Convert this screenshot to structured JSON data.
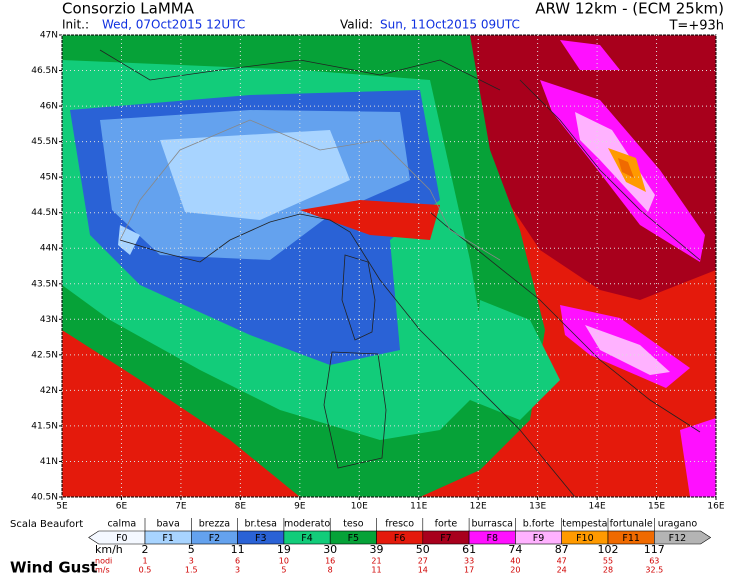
{
  "header": {
    "title": "Consorzio LaMMA",
    "init_label": "Init.:",
    "init": "Wed, 07Oct2015 12UTC",
    "valid_label": "Valid:",
    "valid": "Sun, 11Oct2015 09UTC",
    "model": "ARW 12km - (ECM 25km)",
    "lead": "T=+93h"
  },
  "map": {
    "lat_labels": [
      "47N",
      "46.5N",
      "46N",
      "45.5N",
      "45N",
      "44.5N",
      "44N",
      "43.5N",
      "43N",
      "42.5N",
      "42N",
      "41.5N",
      "41N",
      "40.5N"
    ],
    "lon_labels": [
      "5E",
      "6E",
      "7E",
      "8E",
      "9E",
      "10E",
      "11E",
      "12E",
      "13E",
      "14E",
      "15E",
      "16E"
    ]
  },
  "legend": {
    "scale_label": "Scala Beaufort",
    "classes": [
      {
        "name": "calma",
        "force": "F0",
        "color": "#f4f8ff"
      },
      {
        "name": "bava",
        "force": "F1",
        "color": "#a8d4ff"
      },
      {
        "name": "brezza",
        "force": "F2",
        "color": "#64a2ee"
      },
      {
        "name": "br.tesa",
        "force": "F3",
        "color": "#2a62d6"
      },
      {
        "name": "moderato",
        "force": "F4",
        "color": "#12cc7a"
      },
      {
        "name": "teso",
        "force": "F5",
        "color": "#06a238"
      },
      {
        "name": "fresco",
        "force": "F6",
        "color": "#e41a0c"
      },
      {
        "name": "forte",
        "force": "F7",
        "color": "#a8001c"
      },
      {
        "name": "burrasca",
        "force": "F8",
        "color": "#ff10ff"
      },
      {
        "name": "b.forte",
        "force": "F9",
        "color": "#ffb2ff"
      },
      {
        "name": "tempesta",
        "force": "F10",
        "color": "#ff9a00"
      },
      {
        "name": "fortunale",
        "force": "F11",
        "color": "#f06a00"
      },
      {
        "name": "uragano",
        "force": "F12",
        "color": "#b4b4b4"
      }
    ],
    "kmh_label": "km/h",
    "kmh": [
      "2",
      "5",
      "11",
      "19",
      "30",
      "39",
      "50",
      "61",
      "74",
      "87",
      "102",
      "117"
    ],
    "knots_label": "nodi",
    "knots": [
      "1",
      "3",
      "6",
      "10",
      "16",
      "21",
      "27",
      "33",
      "40",
      "47",
      "55",
      "63"
    ],
    "ms_label": "m/s",
    "ms": [
      "0.5",
      "1.5",
      "3",
      "5",
      "8",
      "11",
      "14",
      "17",
      "20",
      "24",
      "28",
      "32.5"
    ]
  },
  "footer": {
    "title": "Wind Gust"
  }
}
